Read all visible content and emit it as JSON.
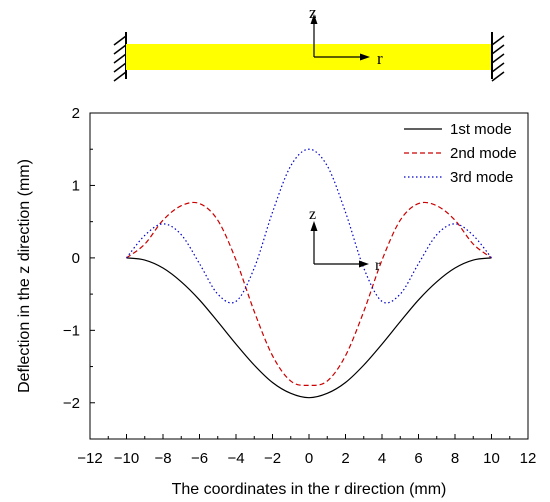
{
  "beam_diagram": {
    "z_label": "z",
    "r_label": "r",
    "beam_color": "#ffff00"
  },
  "chart_data": {
    "type": "line",
    "xlabel": "The coordinates in the r direction (mm)",
    "ylabel": "Deflection in the z direction (mm)",
    "xlim": [
      -12,
      12
    ],
    "ylim": [
      -2.5,
      2
    ],
    "x_ticks": [
      "-12",
      "-10",
      "-8",
      "-6",
      "-4",
      "-2",
      "0",
      "2",
      "4",
      "6",
      "8",
      "10",
      "12"
    ],
    "y_ticks": [
      "-2",
      "-1",
      "0",
      "1",
      "2"
    ],
    "grid": false,
    "legend_position": "top-right",
    "inset_axes": {
      "z_label": "z",
      "r_label": "r"
    },
    "x": [
      -10,
      -9,
      -8,
      -7,
      -6,
      -5,
      -4,
      -3,
      -2,
      -1,
      0,
      1,
      2,
      3,
      4,
      5,
      6,
      7,
      8,
      9,
      10
    ],
    "series": [
      {
        "name": "1st mode",
        "color": "#000000",
        "dash": "solid",
        "values": [
          0,
          -0.03,
          -0.14,
          -0.33,
          -0.58,
          -0.88,
          -1.19,
          -1.48,
          -1.72,
          -1.87,
          -1.93,
          -1.87,
          -1.72,
          -1.48,
          -1.19,
          -0.88,
          -0.58,
          -0.33,
          -0.14,
          -0.03,
          0
        ]
      },
      {
        "name": "2nd mode",
        "color": "#cc0000",
        "dash": "dashed",
        "values": [
          0,
          0.19,
          0.52,
          0.72,
          0.75,
          0.52,
          -0.03,
          -0.74,
          -1.35,
          -1.7,
          -1.76,
          -1.7,
          -1.35,
          -0.74,
          -0.03,
          0.52,
          0.75,
          0.72,
          0.52,
          0.19,
          0
        ]
      },
      {
        "name": "3rd mode",
        "color": "#0000cc",
        "dash": "dotted",
        "values": [
          0,
          0.31,
          0.47,
          0.32,
          -0.08,
          -0.5,
          -0.6,
          -0.14,
          0.63,
          1.27,
          1.5,
          1.27,
          0.63,
          -0.14,
          -0.6,
          -0.5,
          -0.08,
          0.32,
          0.47,
          0.31,
          0
        ]
      }
    ]
  }
}
